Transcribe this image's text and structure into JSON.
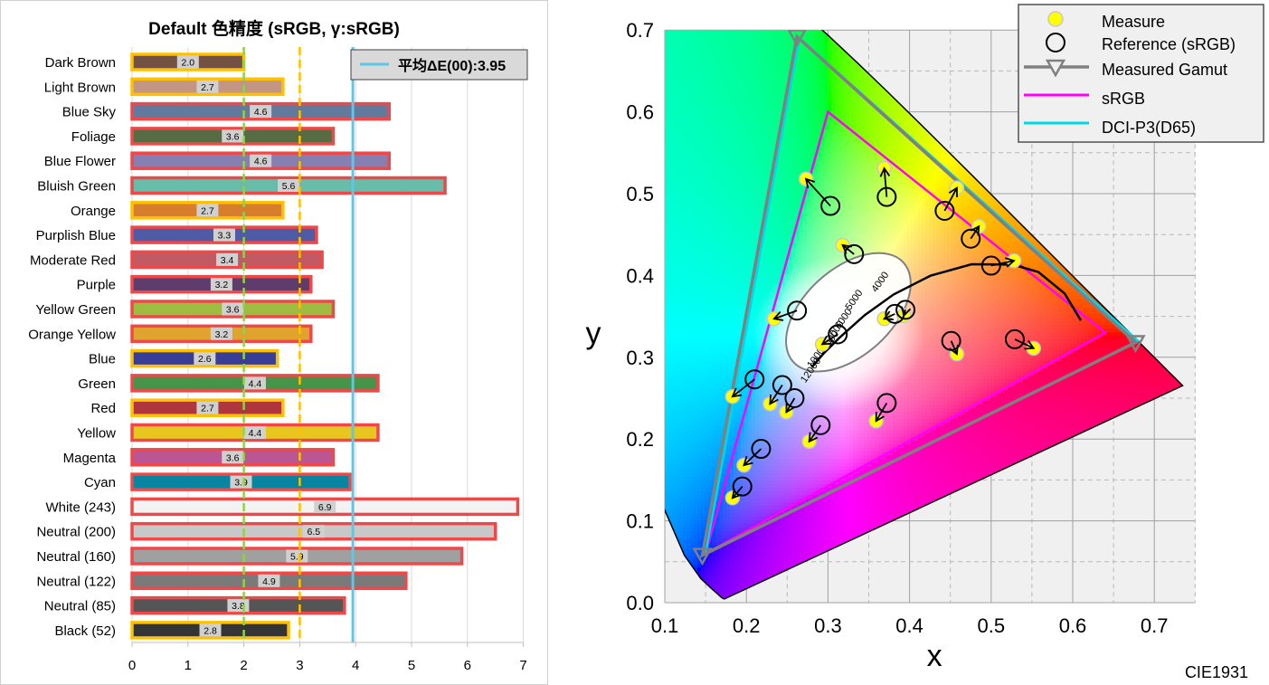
{
  "chart_data": [
    {
      "type": "bar",
      "orientation": "horizontal",
      "title": "Default 色精度 (sRGB, γ:sRGB)",
      "categories": [
        "Dark Brown",
        "Light Brown",
        "Blue Sky",
        "Foliage",
        "Blue Flower",
        "Bluish Green",
        "Orange",
        "Purplish Blue",
        "Moderate Red",
        "Purple",
        "Yellow Green",
        "Orange Yellow",
        "Blue",
        "Green",
        "Red",
        "Yellow",
        "Magenta",
        "Cyan",
        "White (243)",
        "Neutral (200)",
        "Neutral (160)",
        "Neutral (122)",
        "Neutral (85)",
        "Black (52)"
      ],
      "values": [
        2.0,
        2.7,
        4.6,
        3.6,
        4.6,
        5.6,
        2.7,
        3.3,
        3.4,
        3.2,
        3.6,
        3.2,
        2.6,
        4.4,
        2.7,
        4.4,
        3.6,
        3.9,
        6.9,
        6.5,
        5.9,
        4.9,
        3.8,
        2.8
      ],
      "bar_colors": [
        "#735244",
        "#c29682",
        "#627a9d",
        "#576c43",
        "#8580b1",
        "#67bdaa",
        "#d67e2c",
        "#505ba6",
        "#c15a63",
        "#5e3c6c",
        "#9dbc40",
        "#e0a32e",
        "#383d96",
        "#469449",
        "#af363c",
        "#e7c71f",
        "#bb5695",
        "#0885a1",
        "#f3f3f3",
        "#c8c8c8",
        "#a0a0a0",
        "#7a7a7a",
        "#555555",
        "#343434"
      ],
      "outline_colors": [
        "#ffc000",
        "#ffc000",
        "#f04848",
        "#f04848",
        "#f04848",
        "#f04848",
        "#ffc000",
        "#f04848",
        "#f04848",
        "#f04848",
        "#f04848",
        "#f04848",
        "#ffc000",
        "#f04848",
        "#ffc000",
        "#f04848",
        "#f04848",
        "#f04848",
        "#f04848",
        "#f04848",
        "#f04848",
        "#f04848",
        "#f04848",
        "#ffc000"
      ],
      "x_ticks": [
        0,
        1,
        2,
        3,
        4,
        5,
        6,
        7
      ],
      "xlim": [
        0,
        7
      ],
      "reference_lines": [
        {
          "value": 2,
          "style": "dashed",
          "color": "#92d050"
        },
        {
          "value": 3,
          "style": "dashed",
          "color": "#ffc000"
        },
        {
          "value": 3.95,
          "style": "solid",
          "color": "#5bc8e8"
        }
      ],
      "legend_label": "平均ΔE(00):3.95",
      "legend_position": "top-right",
      "grid": true
    },
    {
      "type": "scatter",
      "subtype": "CIE 1931 chromaticity diagram",
      "caption": "CIE1931",
      "xlabel": "x",
      "ylabel": "y",
      "xlim": [
        0.1,
        0.75
      ],
      "ylim": [
        0,
        0.7
      ],
      "x_ticks": [
        0.1,
        0.2,
        0.3,
        0.4,
        0.5,
        0.6,
        0.7
      ],
      "y_ticks": [
        0.0,
        0.1,
        0.2,
        0.3,
        0.4,
        0.5,
        0.6,
        0.7
      ],
      "x_tick_labels": [
        "0.1",
        "0.2",
        "0.3",
        "0.4",
        "0.5",
        "0.6",
        "0.7"
      ],
      "y_tick_labels": [
        "0.0",
        "0.1",
        "0.2",
        "0.3",
        "0.4",
        "0.5",
        "0.6",
        "0.7"
      ],
      "grid": "major solid, minor dashed",
      "legend_position": "top-right",
      "legend": [
        "Measure",
        "Reference (sRGB)",
        "Measured Gamut",
        "sRGB",
        "DCI-P3(D65)"
      ],
      "series": [
        {
          "name": "sRGB",
          "color": "#ff00ff",
          "points": [
            [
              0.64,
              0.33
            ],
            [
              0.3,
              0.6
            ],
            [
              0.15,
              0.06
            ]
          ]
        },
        {
          "name": "DCI-P3(D65)",
          "color": "#00d8e8",
          "points": [
            [
              0.68,
              0.32
            ],
            [
              0.265,
              0.69
            ],
            [
              0.15,
              0.06
            ]
          ]
        },
        {
          "name": "Measured Gamut",
          "color": "#808080",
          "points": [
            [
              0.677,
              0.318
            ],
            [
              0.262,
              0.692
            ],
            [
              0.146,
              0.058
            ]
          ]
        }
      ],
      "measure_reference_pairs": [
        [
          0.273,
          0.518,
          0.303,
          0.485
        ],
        [
          0.369,
          0.531,
          0.372,
          0.496
        ],
        [
          0.458,
          0.507,
          0.443,
          0.479
        ],
        [
          0.485,
          0.46,
          0.475,
          0.445
        ],
        [
          0.318,
          0.437,
          0.332,
          0.426
        ],
        [
          0.528,
          0.418,
          0.5,
          0.412
        ],
        [
          0.234,
          0.347,
          0.262,
          0.357
        ],
        [
          0.393,
          0.351,
          0.395,
          0.358
        ],
        [
          0.369,
          0.347,
          0.382,
          0.353
        ],
        [
          0.293,
          0.316,
          0.312,
          0.328
        ],
        [
          0.183,
          0.252,
          0.21,
          0.273
        ],
        [
          0.229,
          0.243,
          0.244,
          0.266
        ],
        [
          0.249,
          0.233,
          0.259,
          0.25
        ],
        [
          0.277,
          0.197,
          0.291,
          0.217
        ],
        [
          0.359,
          0.222,
          0.372,
          0.244
        ],
        [
          0.458,
          0.304,
          0.451,
          0.32
        ],
        [
          0.552,
          0.311,
          0.529,
          0.322
        ],
        [
          0.197,
          0.168,
          0.218,
          0.188
        ],
        [
          0.183,
          0.128,
          0.195,
          0.142
        ]
      ],
      "blackbody_labels": [
        "4000",
        "5000",
        "6000",
        "7000",
        "8000",
        "10000",
        "12000"
      ]
    }
  ]
}
